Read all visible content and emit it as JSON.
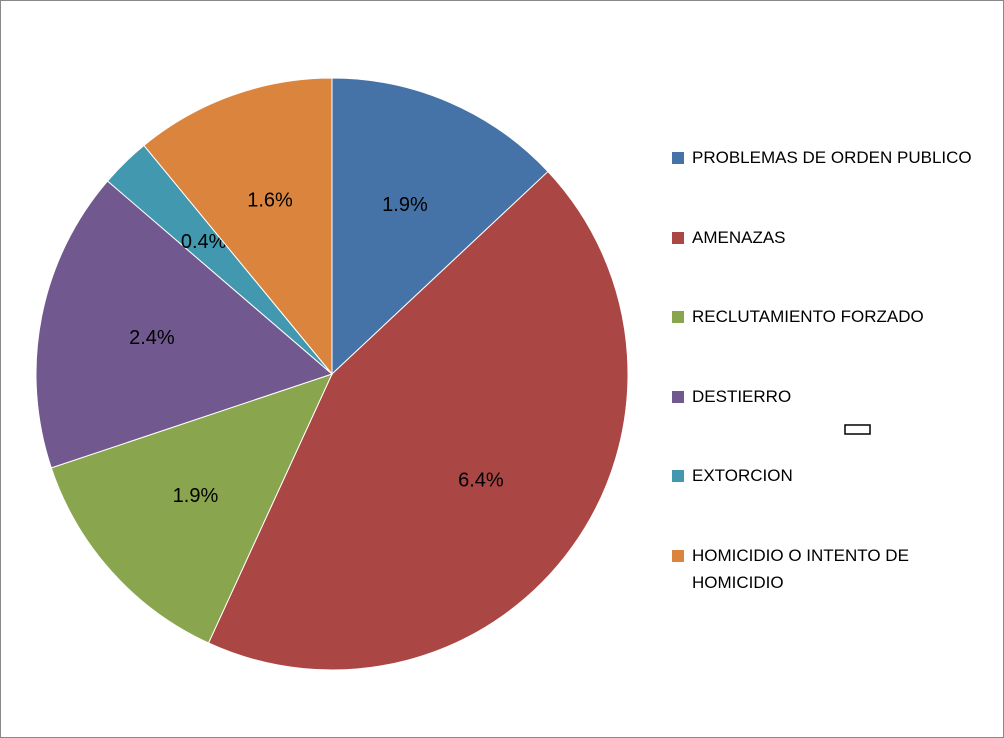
{
  "chart_data": {
    "type": "pie",
    "categories": [
      "PROBLEMAS DE ORDEN PUBLICO",
      "AMENAZAS",
      "RECLUTAMIENTO FORZADO",
      "DESTIERRO",
      "EXTORCION",
      "HOMICIDIO O INTENTO DE HOMICIDIO"
    ],
    "values": [
      1.9,
      6.4,
      1.9,
      2.4,
      0.4,
      1.6
    ],
    "value_labels": [
      "1.9%",
      "6.4%",
      "1.9%",
      "2.4%",
      "0.4%",
      "1.6%"
    ],
    "colors": [
      "#4572a7",
      "#aa4643",
      "#89a54e",
      "#71588f",
      "#4198af",
      "#db843d"
    ],
    "legend": "right"
  }
}
